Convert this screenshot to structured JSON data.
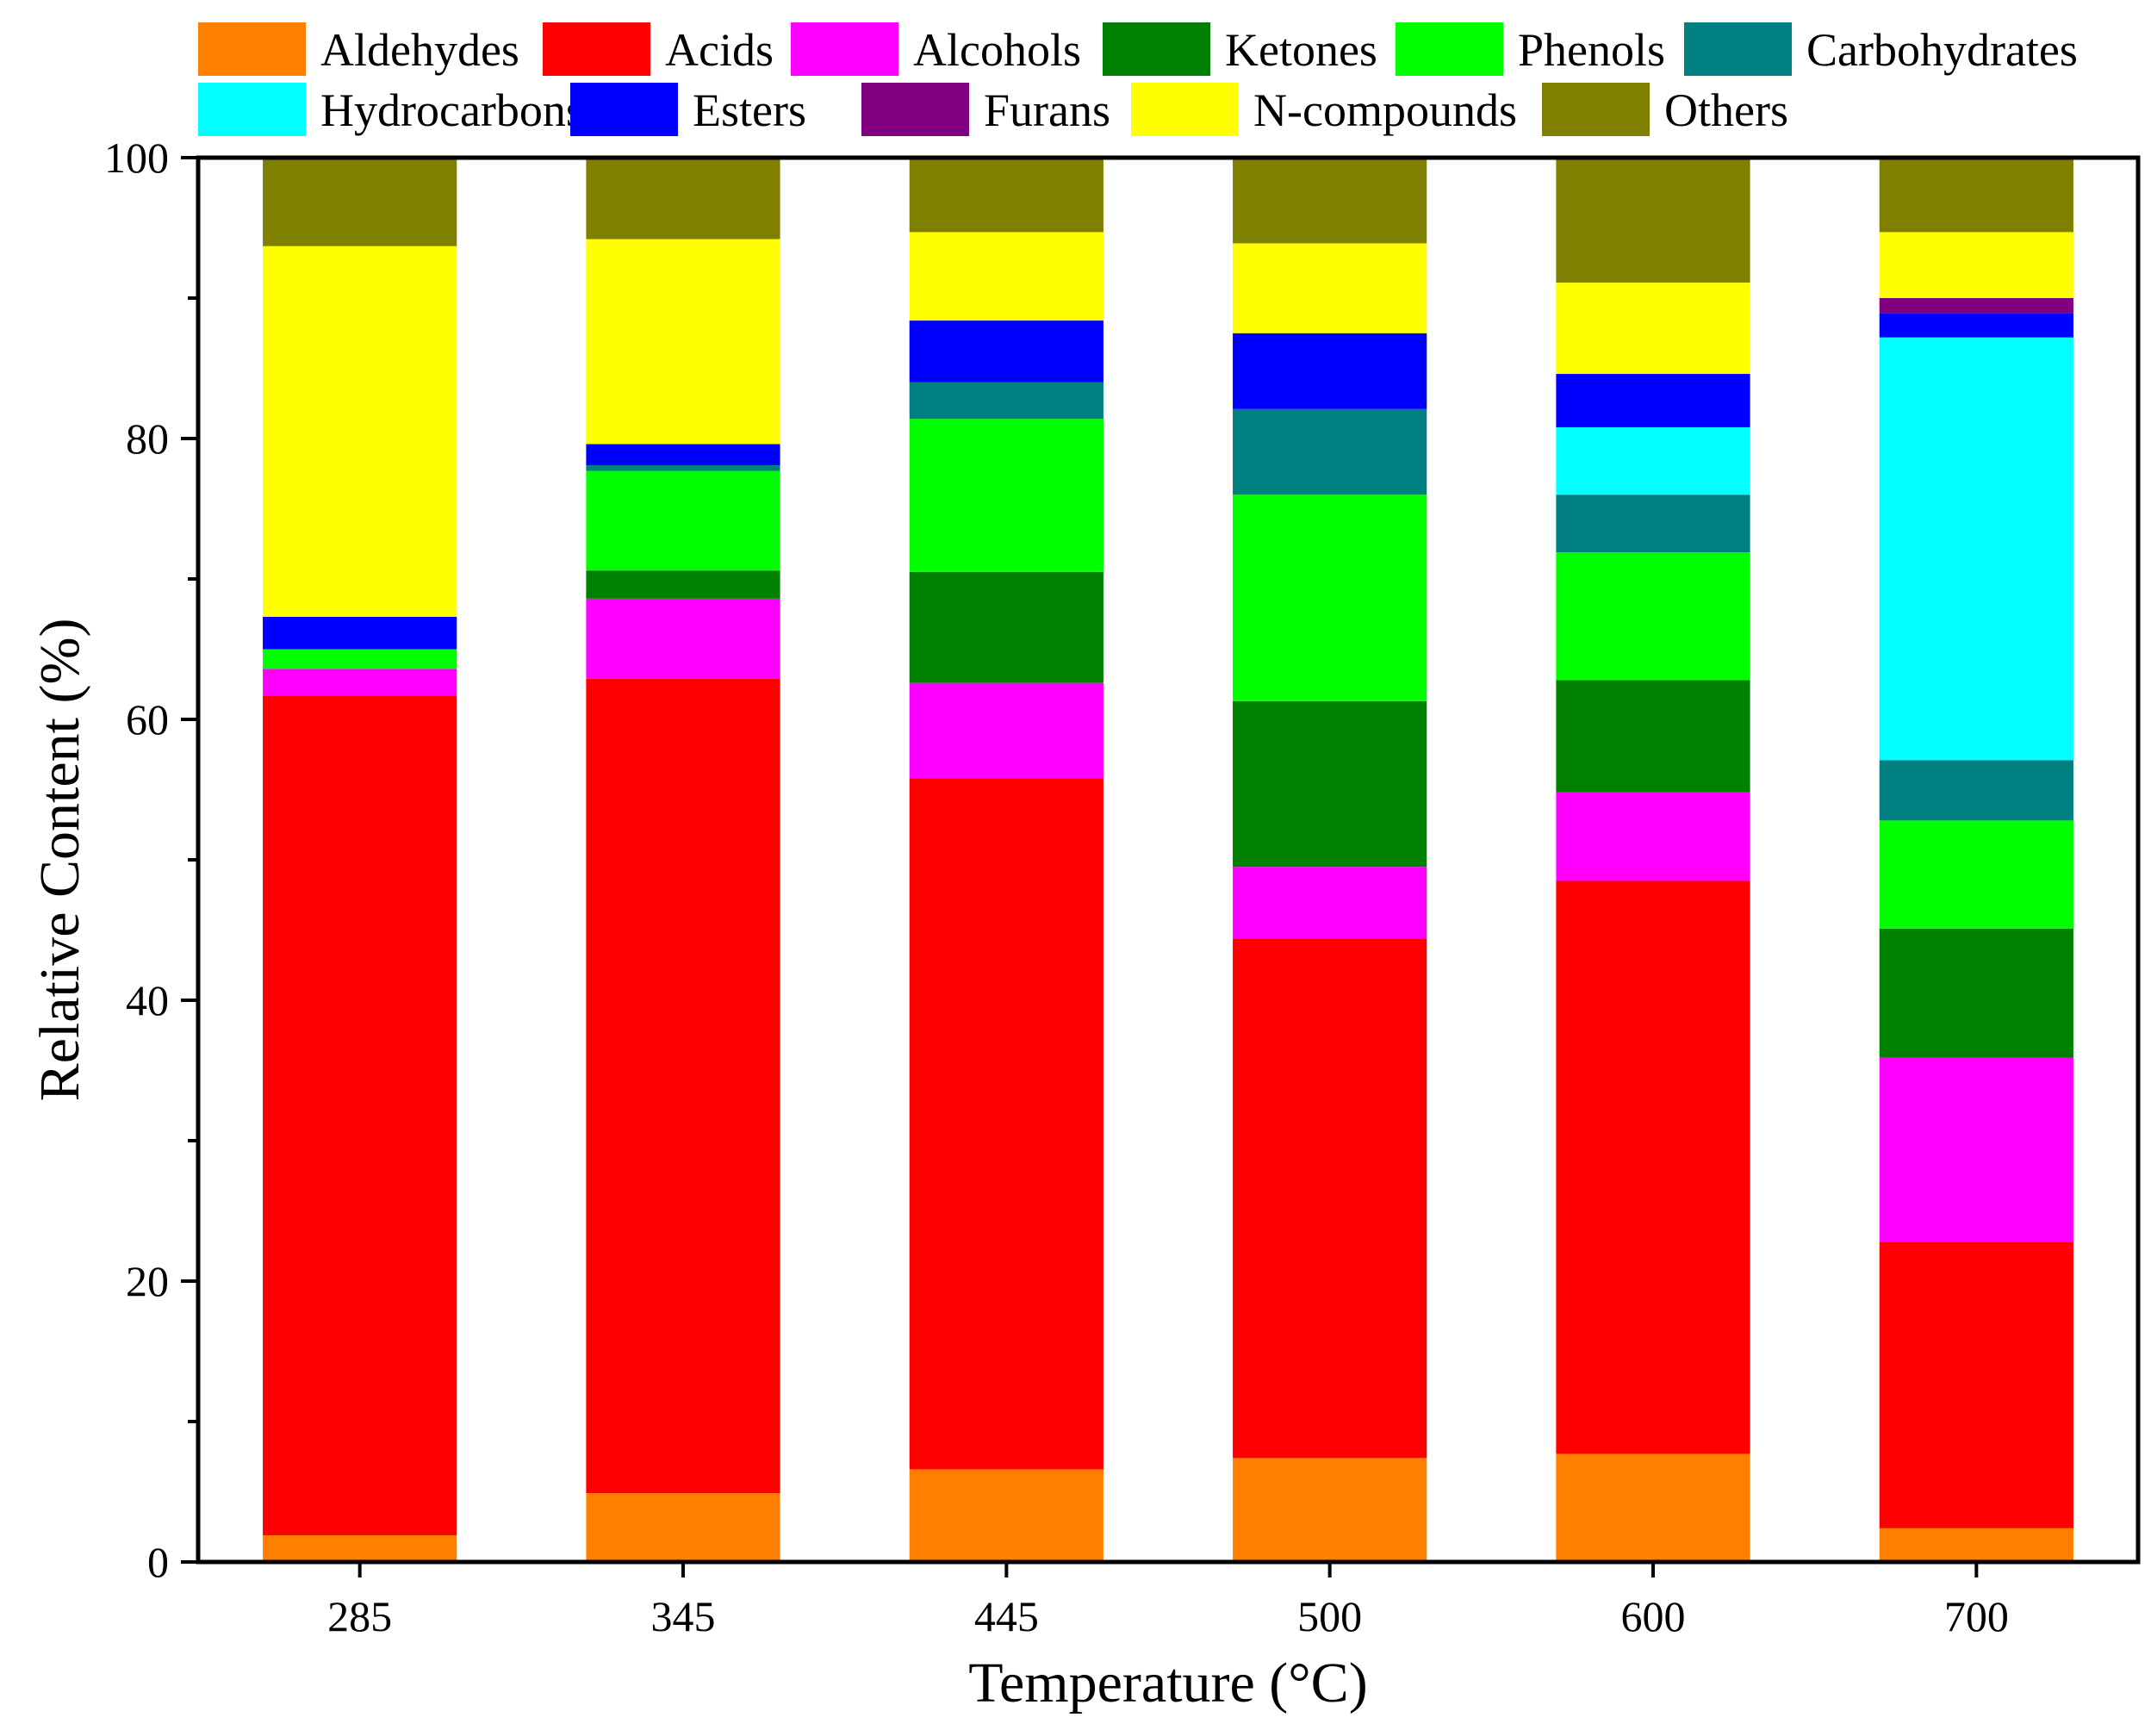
{
  "chart_data": {
    "type": "bar",
    "stacked": true,
    "xlabel": "Temperature (°C)",
    "ylabel": "Relative Content (%)",
    "ylim": [
      0,
      100
    ],
    "yticks": [
      0,
      20,
      40,
      60,
      80,
      100
    ],
    "grid": false,
    "legend_position": "top",
    "categories": [
      "285",
      "345",
      "445",
      "500",
      "600",
      "700"
    ],
    "series": [
      {
        "name": "Aldehydes",
        "color": "#FF8000",
        "values": [
          1.9,
          4.9,
          6.6,
          7.4,
          7.7,
          2.4
        ]
      },
      {
        "name": "Acids",
        "color": "#FF0000",
        "values": [
          59.8,
          58.0,
          49.2,
          37.0,
          40.8,
          20.4
        ]
      },
      {
        "name": "Alcohols",
        "color": "#FF00FF",
        "values": [
          1.9,
          5.7,
          6.8,
          5.1,
          6.3,
          13.1
        ]
      },
      {
        "name": "Ketones",
        "color": "#008000",
        "values": [
          0.0,
          2.0,
          7.9,
          11.8,
          8.0,
          9.2
        ]
      },
      {
        "name": "Phenols",
        "color": "#00FF00",
        "values": [
          1.4,
          7.1,
          10.9,
          14.7,
          9.1,
          7.7
        ]
      },
      {
        "name": "Carbohydrates",
        "color": "#008080",
        "values": [
          0.0,
          0.4,
          2.6,
          6.1,
          4.1,
          4.3
        ]
      },
      {
        "name": "Hydrocarbons",
        "color": "#00FFFF",
        "values": [
          0.0,
          0.0,
          0.0,
          0.0,
          4.8,
          30.1
        ]
      },
      {
        "name": "Esters",
        "color": "#0000FF",
        "values": [
          2.3,
          1.5,
          4.4,
          5.4,
          3.8,
          1.7
        ]
      },
      {
        "name": "Furans",
        "color": "#800080",
        "values": [
          0.0,
          0.0,
          0.0,
          0.0,
          0.0,
          1.1
        ]
      },
      {
        "name": "N-compounds",
        "color": "#FFFF00",
        "values": [
          26.4,
          14.6,
          6.3,
          6.4,
          6.5,
          4.7
        ]
      },
      {
        "name": "Others",
        "color": "#808000",
        "values": [
          6.3,
          5.8,
          5.3,
          6.1,
          8.9,
          5.3
        ]
      }
    ]
  }
}
